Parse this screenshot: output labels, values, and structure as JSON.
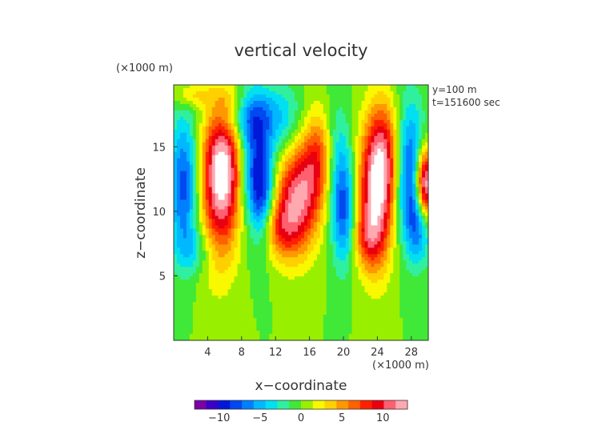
{
  "chart_data": {
    "type": "heatmap",
    "title": "vertical velocity",
    "xlabel": "x−coordinate",
    "ylabel": "z−coordinate",
    "x_unit": "(×1000 m)",
    "y_unit": "(×1000 m)",
    "annotations": [
      "y=100 m",
      "t=151600 sec"
    ],
    "xlim": [
      0,
      30
    ],
    "ylim": [
      0,
      19.8
    ],
    "x_ticks": [
      4,
      8,
      12,
      16,
      20,
      24,
      28
    ],
    "y_ticks": [
      5,
      10,
      15
    ],
    "colorbar": {
      "range": [
        -13,
        13
      ],
      "ticks": [
        -10,
        -5,
        0,
        5,
        10
      ],
      "tick_labels": [
        "−10",
        "−5",
        "0",
        "5",
        "10"
      ],
      "colors": [
        "#7a00a8",
        "#3a00c8",
        "#0018d8",
        "#0048f0",
        "#0080ff",
        "#00b8ff",
        "#00e0f0",
        "#30f0a0",
        "#40e838",
        "#98f000",
        "#f8f800",
        "#ffd000",
        "#ff9800",
        "#ff6000",
        "#ff2000",
        "#e80010",
        "#ff6070",
        "#ffa8b0"
      ]
    },
    "features": [
      {
        "x": 5.8,
        "z": 13.5,
        "sx": 1.6,
        "sz": 3.6,
        "value": 11.5
      },
      {
        "x": 5.3,
        "z": 10.5,
        "sx": 1.7,
        "sz": 4.5,
        "value": 4.5
      },
      {
        "x": 1.2,
        "z": 12.0,
        "sx": 1.2,
        "sz": 3.8,
        "value": -8.0
      },
      {
        "x": 9.5,
        "z": 13.5,
        "sx": 1.3,
        "sz": 3.4,
        "value": -7.0
      },
      {
        "x": 10.5,
        "z": 11.0,
        "sx": 1.0,
        "sz": 2.8,
        "value": -6.0
      },
      {
        "x": 8.5,
        "z": 17.5,
        "sx": 2.5,
        "sz": 1.5,
        "value": -5.0
      },
      {
        "x": 14.0,
        "z": 10.5,
        "sx": 1.6,
        "sz": 2.8,
        "value": 9.0
      },
      {
        "x": 16.0,
        "z": 12.5,
        "sx": 1.5,
        "sz": 3.2,
        "value": 6.5
      },
      {
        "x": 17.5,
        "z": 14.5,
        "sx": 1.2,
        "sz": 2.5,
        "value": 5.0
      },
      {
        "x": 12.0,
        "z": 8.5,
        "sx": 1.6,
        "sz": 1.6,
        "value": 5.0
      },
      {
        "x": 13.0,
        "z": 17.0,
        "sx": 2.0,
        "sz": 2.0,
        "value": -3.5
      },
      {
        "x": 20.0,
        "z": 10.0,
        "sx": 1.0,
        "sz": 3.0,
        "value": -7.5
      },
      {
        "x": 19.0,
        "z": 14.5,
        "sx": 1.2,
        "sz": 3.0,
        "value": -4.0
      },
      {
        "x": 23.8,
        "z": 11.0,
        "sx": 1.5,
        "sz": 3.8,
        "value": 11.5
      },
      {
        "x": 24.8,
        "z": 14.5,
        "sx": 1.4,
        "sz": 3.0,
        "value": 7.0
      },
      {
        "x": 22.8,
        "z": 7.8,
        "sx": 1.2,
        "sz": 1.5,
        "value": 4.0
      },
      {
        "x": 27.8,
        "z": 13.0,
        "sx": 1.3,
        "sz": 3.8,
        "value": -8.5
      },
      {
        "x": 29.6,
        "z": 12.0,
        "sx": 0.8,
        "sz": 2.0,
        "value": 16.0
      },
      {
        "x": 29.0,
        "z": 9.0,
        "sx": 1.0,
        "sz": 2.0,
        "value": -6.0
      },
      {
        "x": 2.5,
        "z": 7.0,
        "sx": 1.5,
        "sz": 1.2,
        "value": -3.0
      },
      {
        "x": 7.0,
        "z": 18.5,
        "sx": 1.5,
        "sz": 0.8,
        "value": 2.0
      },
      {
        "x": 2.0,
        "z": 19.0,
        "sx": 1.5,
        "sz": 0.7,
        "value": 3.5
      }
    ]
  }
}
